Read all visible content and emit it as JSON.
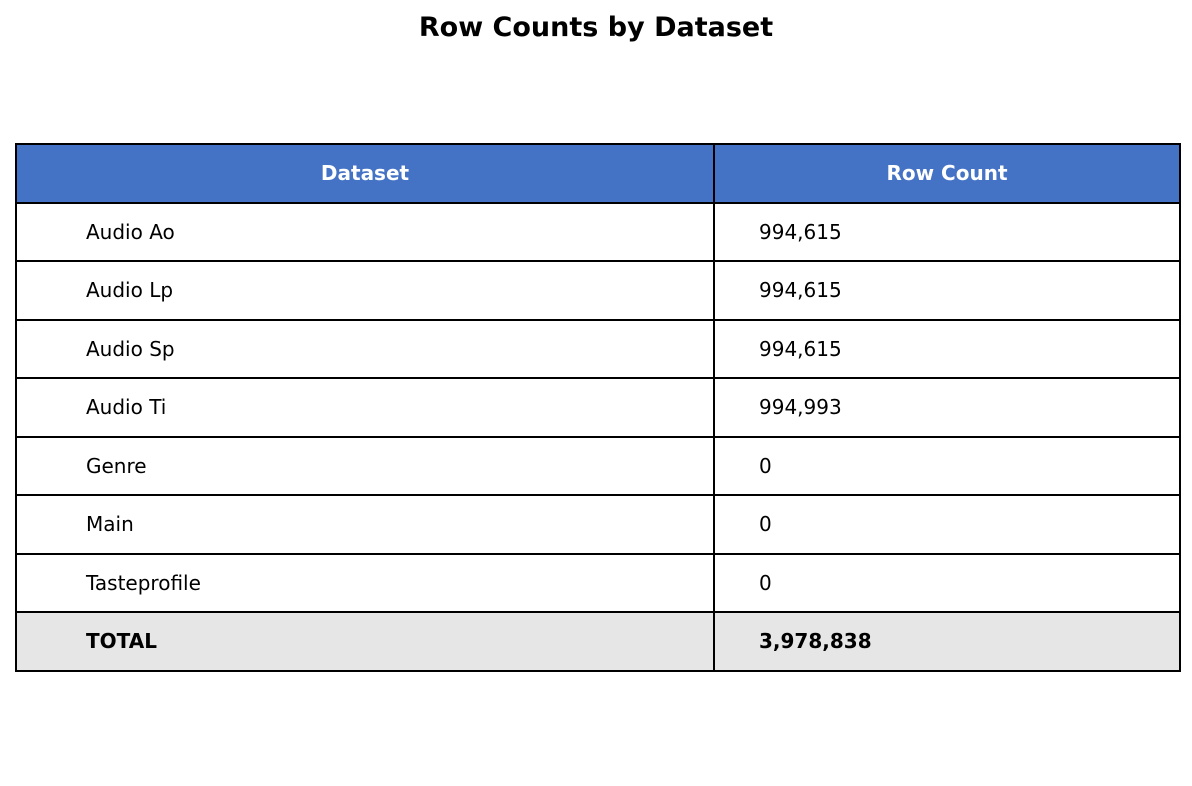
{
  "chart_data": {
    "type": "table",
    "title": "Row Counts by Dataset",
    "columns": [
      "Dataset",
      "Row Count"
    ],
    "rows": [
      {
        "dataset": "Audio Ao",
        "count": "994,615"
      },
      {
        "dataset": "Audio Lp",
        "count": "994,615"
      },
      {
        "dataset": "Audio Sp",
        "count": "994,615"
      },
      {
        "dataset": "Audio Ti",
        "count": "994,993"
      },
      {
        "dataset": "Genre",
        "count": "0"
      },
      {
        "dataset": "Main",
        "count": "0"
      },
      {
        "dataset": "Tasteprofile",
        "count": "0"
      }
    ],
    "total": {
      "label": "TOTAL",
      "count": "3,978,838"
    },
    "header_color": "#4472c4",
    "total_row_color": "#e6e6e6"
  }
}
